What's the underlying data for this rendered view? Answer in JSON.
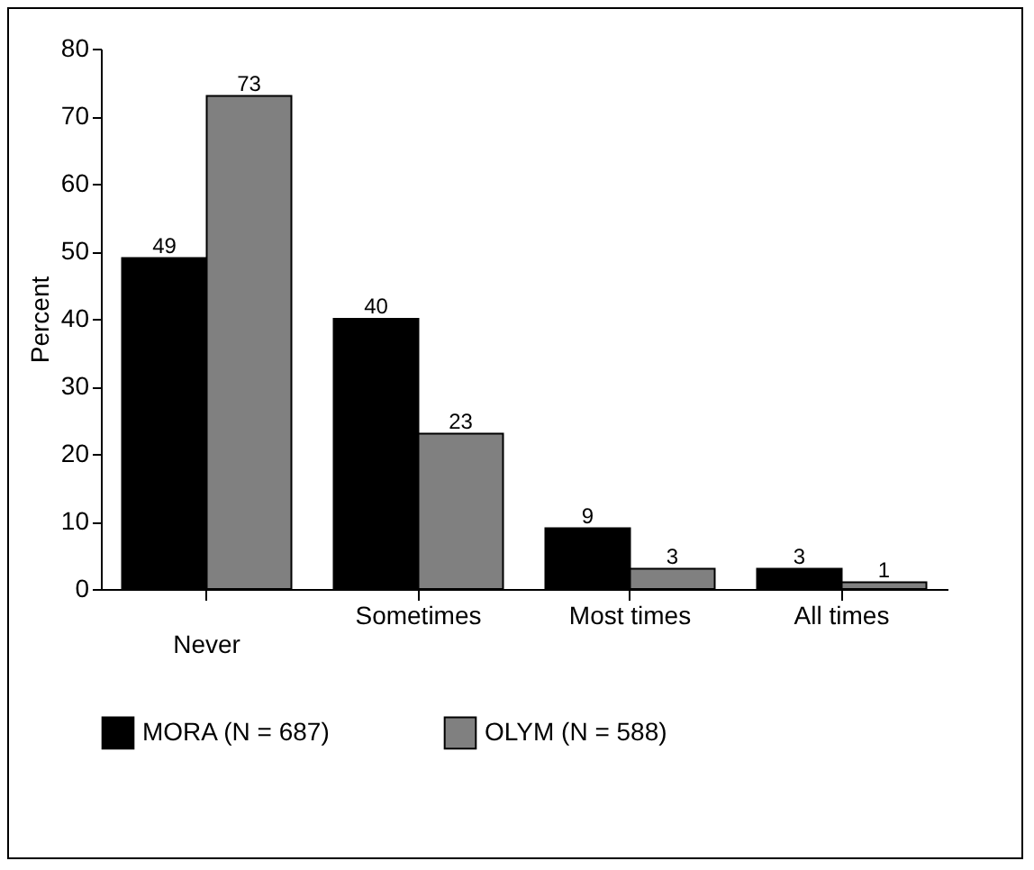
{
  "chart_data": {
    "type": "bar",
    "ylabel": "Percent",
    "categories": [
      "Never",
      "Sometimes",
      "Most times",
      "All times"
    ],
    "series": [
      {
        "name": "MORA (N = 687)",
        "color": "#000000",
        "values": [
          49,
          40,
          9,
          3
        ]
      },
      {
        "name": "OLYM (N = 588)",
        "color": "#808080",
        "values": [
          73,
          23,
          3,
          1
        ]
      }
    ],
    "ylim": [
      0,
      80
    ],
    "yticks": [
      0,
      10,
      20,
      30,
      40,
      50,
      60,
      70,
      80
    ],
    "grid": false,
    "legend": "bottom",
    "data_labels": true
  }
}
